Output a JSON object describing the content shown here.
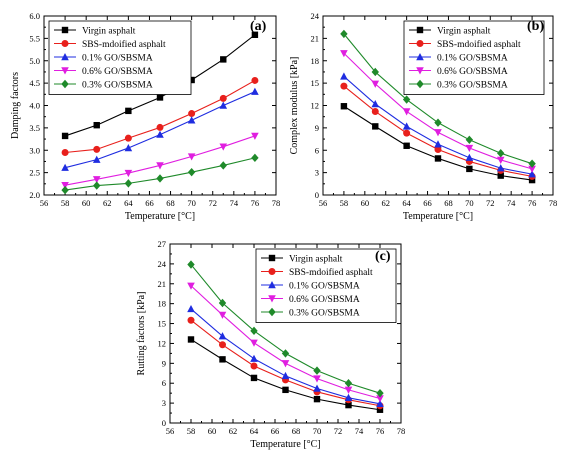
{
  "series_styles": [
    {
      "color": "#000000",
      "marker": "square"
    },
    {
      "color": "#e8201c",
      "marker": "circle"
    },
    {
      "color": "#1f2de0",
      "marker": "triangle-up"
    },
    {
      "color": "#e01ee0",
      "marker": "triangle-down"
    },
    {
      "color": "#1f8a2a",
      "marker": "diamond"
    }
  ],
  "chart_data": [
    {
      "type": "line",
      "panel": "(a)",
      "title": "",
      "xlabel": "Temperature [°C]",
      "ylabel": "Damping factors",
      "xlim": [
        56,
        78
      ],
      "ylim": [
        2.0,
        6.0
      ],
      "xticks": [
        56,
        58,
        60,
        62,
        64,
        66,
        68,
        70,
        72,
        74,
        76,
        78
      ],
      "xtick_labels": [
        "56",
        "58",
        "60",
        "62",
        "64",
        "66",
        "68",
        "70",
        "72",
        "74",
        "76",
        "78"
      ],
      "yticks": [
        2.0,
        2.5,
        3.0,
        3.5,
        4.0,
        4.5,
        5.0,
        5.5,
        6.0
      ],
      "ytick_labels": [
        "2.0",
        "2.5",
        "3.0",
        "3.5",
        "4.0",
        "4.5",
        "5.0",
        "5.5",
        "6.0"
      ],
      "legend_position": "top-left",
      "x": [
        58,
        61,
        64,
        67,
        70,
        73,
        76
      ],
      "series": [
        {
          "name": "Virgin asphalt",
          "values": [
            3.32,
            3.56,
            3.88,
            4.18,
            4.57,
            5.03,
            5.58
          ]
        },
        {
          "name": "SBS-mdoified asphalt",
          "values": [
            2.95,
            3.02,
            3.27,
            3.51,
            3.82,
            4.16,
            4.56
          ]
        },
        {
          "name": "0.1% GO/SBSMA",
          "values": [
            2.61,
            2.79,
            3.05,
            3.35,
            3.67,
            4.0,
            4.31
          ]
        },
        {
          "name": "0.6% GO/SBSMA",
          "values": [
            2.22,
            2.35,
            2.49,
            2.66,
            2.86,
            3.08,
            3.32
          ]
        },
        {
          "name": "0.3% GO/SBSMA",
          "values": [
            2.11,
            2.21,
            2.26,
            2.37,
            2.51,
            2.66,
            2.83
          ]
        }
      ]
    },
    {
      "type": "line",
      "panel": "(b)",
      "title": "",
      "xlabel": "Temperature [°C]",
      "ylabel": "Complex modulus [kPa]",
      "xlim": [
        56,
        78
      ],
      "ylim": [
        0,
        24
      ],
      "xticks": [
        56,
        58,
        60,
        62,
        64,
        66,
        68,
        70,
        72,
        74,
        76,
        78
      ],
      "xtick_labels": [
        "56",
        "58",
        "60",
        "62",
        "64",
        "66",
        "68",
        "70",
        "72",
        "74",
        "76",
        "78"
      ],
      "yticks": [
        0,
        3,
        6,
        9,
        12,
        15,
        18,
        21,
        24
      ],
      "ytick_labels": [
        "0",
        "3",
        "6",
        "9",
        "12",
        "15",
        "18",
        "21",
        "24"
      ],
      "legend_position": "top-right",
      "x": [
        58,
        61,
        64,
        67,
        70,
        73,
        76
      ],
      "series": [
        {
          "name": "Virgin asphalt",
          "values": [
            11.9,
            9.2,
            6.6,
            4.9,
            3.5,
            2.6,
            2.0
          ]
        },
        {
          "name": "SBS-mdoified asphalt",
          "values": [
            14.6,
            11.2,
            8.3,
            6.1,
            4.5,
            3.3,
            2.5
          ]
        },
        {
          "name": "0.1% GO/SBSMA",
          "values": [
            15.9,
            12.2,
            9.2,
            6.8,
            5.0,
            3.6,
            2.8
          ]
        },
        {
          "name": "0.6% GO/SBSMA",
          "values": [
            19.0,
            14.9,
            11.2,
            8.4,
            6.3,
            4.7,
            3.5
          ]
        },
        {
          "name": "0.3% GO/SBSMA",
          "values": [
            21.6,
            16.5,
            12.8,
            9.7,
            7.4,
            5.6,
            4.2
          ]
        }
      ]
    },
    {
      "type": "line",
      "panel": "(c)",
      "title": "",
      "xlabel": "Temperature [°C]",
      "ylabel": "Rutting factors [kPa]",
      "xlim": [
        56,
        78
      ],
      "ylim": [
        0,
        27
      ],
      "xticks": [
        56,
        58,
        60,
        62,
        64,
        66,
        68,
        70,
        72,
        74,
        76,
        78
      ],
      "xtick_labels": [
        "56",
        "58",
        "60",
        "62",
        "64",
        "66",
        "68",
        "70",
        "72",
        "74",
        "76",
        "78"
      ],
      "yticks": [
        0,
        3,
        6,
        9,
        12,
        15,
        18,
        21,
        24,
        27
      ],
      "ytick_labels": [
        "0",
        "3",
        "6",
        "9",
        "12",
        "15",
        "18",
        "21",
        "24",
        "27"
      ],
      "legend_position": "top-right",
      "x": [
        58,
        61,
        64,
        67,
        70,
        73,
        76
      ],
      "series": [
        {
          "name": "Virgin asphalt",
          "values": [
            12.6,
            9.6,
            6.8,
            5.0,
            3.6,
            2.7,
            2.0
          ]
        },
        {
          "name": "SBS-mdoified asphalt",
          "values": [
            15.5,
            11.8,
            8.6,
            6.5,
            4.7,
            3.5,
            2.6
          ]
        },
        {
          "name": "0.1% GO/SBSMA",
          "values": [
            17.2,
            13.1,
            9.7,
            7.1,
            5.2,
            3.8,
            2.9
          ]
        },
        {
          "name": "0.6% GO/SBSMA",
          "values": [
            20.7,
            16.3,
            12.1,
            9.0,
            6.7,
            5.0,
            3.7
          ]
        },
        {
          "name": "0.3% GO/SBSMA",
          "values": [
            23.9,
            18.1,
            13.9,
            10.5,
            7.9,
            6.0,
            4.5
          ]
        }
      ]
    }
  ]
}
